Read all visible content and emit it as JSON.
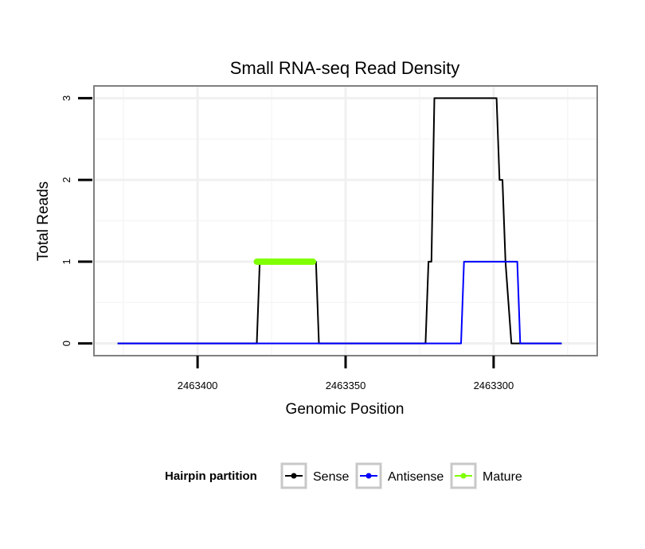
{
  "chart_data": {
    "type": "line",
    "title": "Small RNA-seq Read Density",
    "xlabel": "Genomic Position",
    "ylabel": "Total Reads",
    "x_reversed": true,
    "xlim": [
      2463435,
      2463265
    ],
    "ylim": [
      -0.15,
      3.15
    ],
    "x_ticks": [
      2463400,
      2463350,
      2463300
    ],
    "x_tick_labels": [
      "2463400",
      "2463350",
      "2463300"
    ],
    "y_ticks": [
      0,
      1,
      2,
      3
    ],
    "y_tick_labels": [
      "0",
      "1",
      "2",
      "3"
    ],
    "grid": true,
    "legend": {
      "title": "Hairpin partition",
      "position": "bottom",
      "entries": [
        "Sense",
        "Antisense",
        "Mature"
      ]
    },
    "series": [
      {
        "name": "Sense",
        "color": "#000000",
        "x": [
          2463427,
          2463380,
          2463379,
          2463360,
          2463359,
          2463323,
          2463322,
          2463321,
          2463320,
          2463299,
          2463298,
          2463297,
          2463296,
          2463294,
          2463293,
          2463277
        ],
        "y": [
          0,
          0,
          1,
          1,
          0,
          0,
          1,
          1,
          3,
          3,
          2,
          2,
          1,
          0,
          0,
          0
        ]
      },
      {
        "name": "Antisense",
        "color": "#0000ff",
        "x": [
          2463427,
          2463311,
          2463310,
          2463292,
          2463291,
          2463277
        ],
        "y": [
          0,
          0,
          1,
          1,
          0,
          0
        ]
      },
      {
        "name": "Mature",
        "color": "#7fff00",
        "x": [
          2463380,
          2463361
        ],
        "y": [
          1,
          1
        ]
      }
    ]
  }
}
